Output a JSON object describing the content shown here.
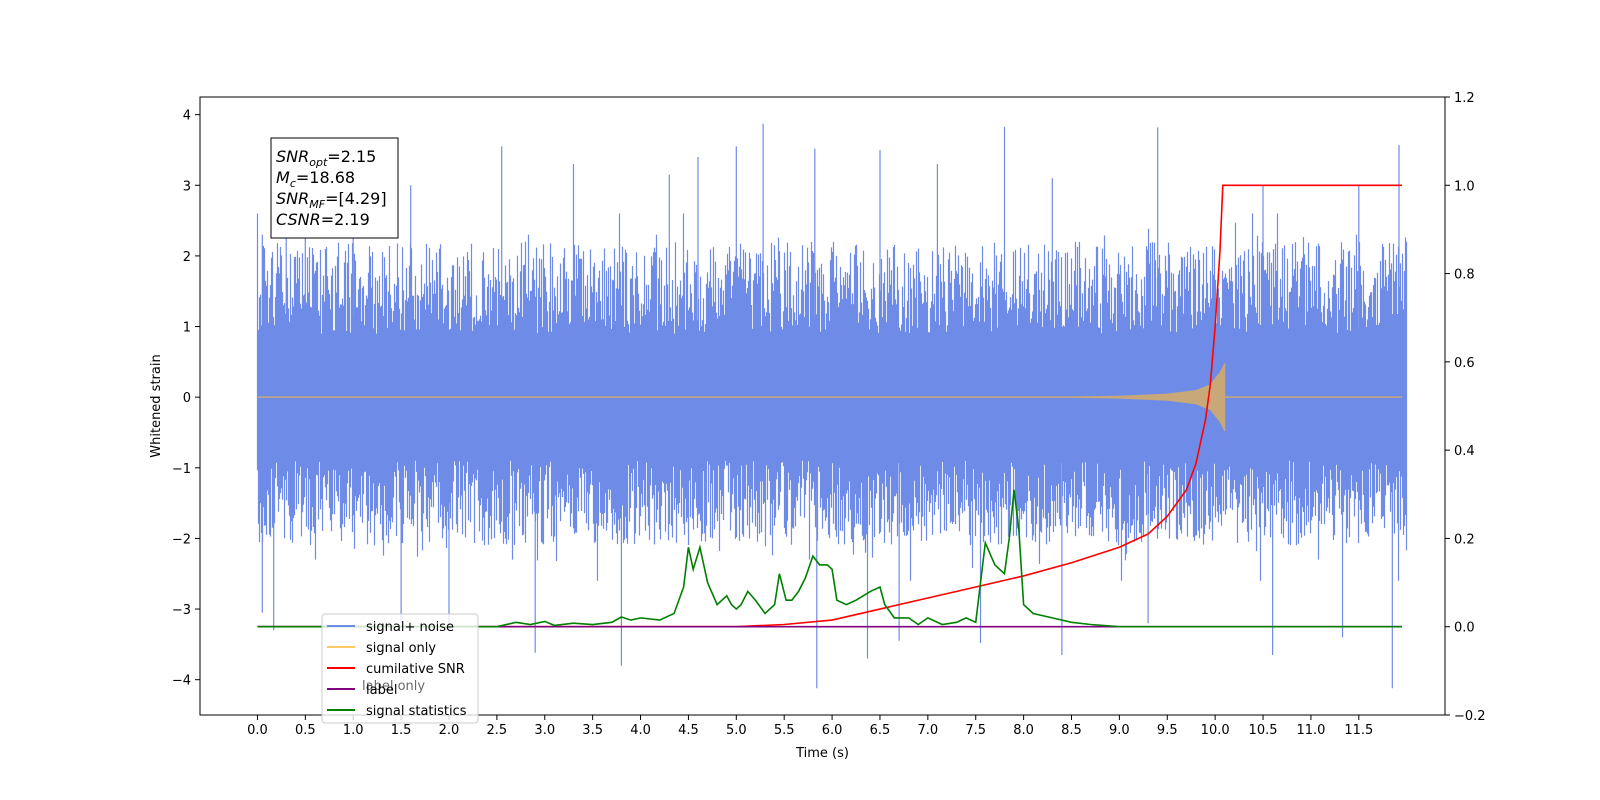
{
  "chart_data": {
    "type": "line",
    "xlabel": "Time (s)",
    "ylabel": "Whitened strain",
    "xlim": [
      -0.6,
      12.4
    ],
    "ylim": [
      -4.5,
      4.25
    ],
    "y2lim": [
      -0.2,
      1.2
    ],
    "x_ticks": [
      "0.0",
      "0.5",
      "1.0",
      "1.5",
      "2.0",
      "2.5",
      "3.0",
      "3.5",
      "4.0",
      "4.5",
      "5.0",
      "5.5",
      "6.0",
      "6.5",
      "7.0",
      "7.5",
      "8.0",
      "8.5",
      "9.0",
      "9.5",
      "10.0",
      "10.5",
      "11.0",
      "11.5"
    ],
    "y_ticks": [
      "4",
      "3",
      "2",
      "1",
      "0",
      "−1",
      "−2",
      "−3",
      "−4"
    ],
    "y2_ticks": [
      "1.2",
      "1.0",
      "0.8",
      "0.6",
      "0.4",
      "0.2",
      "0.0",
      "−0.2"
    ],
    "annotation": {
      "lines": [
        {
          "main": "SNR",
          "sub": "opt",
          "value": "=2.15"
        },
        {
          "main": "M",
          "sub": "c",
          "value": "=18.68"
        },
        {
          "main": "SNR",
          "sub": "MF",
          "value": "=[4.29]"
        },
        {
          "main": "CSNR",
          "sub": "",
          "value": "=2.19"
        }
      ]
    },
    "legend": {
      "placement": "lower-left",
      "entries": [
        {
          "label": "signal+ noise",
          "color": "#6f8be8"
        },
        {
          "label": "signal only",
          "color": "#ffc866"
        },
        {
          "label": "cumilative SNR",
          "color": "#ff0000"
        },
        {
          "label": "label",
          "color": "#800080"
        },
        {
          "label": "signal statistics",
          "color": "#008000"
        }
      ],
      "hidden_text": "label only"
    },
    "series": [
      {
        "name": "signal+ noise",
        "axis": "left",
        "color": "#6f8be8",
        "x_range": [
          0.0,
          12.0
        ],
        "note_spread": "noise band approx -2.1 to 2.3 with spikes to 3.87 and -4.1",
        "peaks": [
          [
            0.05,
            2.3
          ],
          [
            0.3,
            2.5
          ],
          [
            0.5,
            2.9
          ],
          [
            1.0,
            3.1
          ],
          [
            1.6,
            3.0
          ],
          [
            2.55,
            3.55
          ],
          [
            3.3,
            3.3
          ],
          [
            4.3,
            3.15
          ],
          [
            4.6,
            3.4
          ],
          [
            5.0,
            3.55
          ],
          [
            5.28,
            3.87
          ],
          [
            5.82,
            3.52
          ],
          [
            6.5,
            3.5
          ],
          [
            7.1,
            3.3
          ],
          [
            7.8,
            3.83
          ],
          [
            8.3,
            3.1
          ],
          [
            9.4,
            3.82
          ],
          [
            10.5,
            3.0
          ],
          [
            11.5,
            3.0
          ],
          [
            11.92,
            3.57
          ]
        ],
        "troughs": [
          [
            0.05,
            -3.05
          ],
          [
            0.17,
            -3.3
          ],
          [
            1.5,
            -3.2
          ],
          [
            2.0,
            -3.3
          ],
          [
            2.9,
            -3.62
          ],
          [
            3.8,
            -3.8
          ],
          [
            5.84,
            -4.12
          ],
          [
            6.37,
            -3.7
          ],
          [
            6.7,
            -3.45
          ],
          [
            7.55,
            -3.48
          ],
          [
            8.4,
            -3.65
          ],
          [
            9.3,
            -3.2
          ],
          [
            10.6,
            -3.65
          ],
          [
            11.33,
            -3.4
          ],
          [
            11.85,
            -4.12
          ]
        ]
      },
      {
        "name": "signal only",
        "axis": "left",
        "color": "#ffc866",
        "x_range": [
          0.0,
          10.1
        ],
        "envelope": [
          [
            8.5,
            0.01
          ],
          [
            9.0,
            0.02
          ],
          [
            9.5,
            0.05
          ],
          [
            9.8,
            0.1
          ],
          [
            9.95,
            0.18
          ],
          [
            10.05,
            0.35
          ],
          [
            10.1,
            0.48
          ]
        ]
      },
      {
        "name": "cumilative SNR",
        "axis": "right",
        "color": "#ff0000",
        "points": [
          [
            0.0,
            0.0
          ],
          [
            5.0,
            0.0
          ],
          [
            5.5,
            0.005
          ],
          [
            6.0,
            0.015
          ],
          [
            6.5,
            0.04
          ],
          [
            7.0,
            0.065
          ],
          [
            7.5,
            0.09
          ],
          [
            8.0,
            0.115
          ],
          [
            8.5,
            0.145
          ],
          [
            9.0,
            0.18
          ],
          [
            9.3,
            0.21
          ],
          [
            9.5,
            0.25
          ],
          [
            9.7,
            0.31
          ],
          [
            9.8,
            0.37
          ],
          [
            9.9,
            0.47
          ],
          [
            9.95,
            0.55
          ],
          [
            10.0,
            0.68
          ],
          [
            10.05,
            0.85
          ],
          [
            10.08,
            1.0
          ],
          [
            11.95,
            1.0
          ]
        ]
      },
      {
        "name": "label",
        "axis": "right",
        "color": "#800080",
        "points": [
          [
            0.0,
            0.0
          ],
          [
            11.95,
            0.0
          ]
        ]
      },
      {
        "name": "signal statistics",
        "axis": "right",
        "color": "#008000",
        "points": [
          [
            0.0,
            0.0
          ],
          [
            2.5,
            0.0
          ],
          [
            2.7,
            0.01
          ],
          [
            2.85,
            0.005
          ],
          [
            3.0,
            0.012
          ],
          [
            3.1,
            0.003
          ],
          [
            3.3,
            0.008
          ],
          [
            3.5,
            0.005
          ],
          [
            3.7,
            0.01
          ],
          [
            3.8,
            0.022
          ],
          [
            3.9,
            0.015
          ],
          [
            4.0,
            0.02
          ],
          [
            4.2,
            0.015
          ],
          [
            4.35,
            0.03
          ],
          [
            4.45,
            0.09
          ],
          [
            4.5,
            0.18
          ],
          [
            4.55,
            0.13
          ],
          [
            4.62,
            0.18
          ],
          [
            4.7,
            0.1
          ],
          [
            4.8,
            0.05
          ],
          [
            4.9,
            0.07
          ],
          [
            4.95,
            0.05
          ],
          [
            5.0,
            0.04
          ],
          [
            5.05,
            0.05
          ],
          [
            5.12,
            0.08
          ],
          [
            5.2,
            0.06
          ],
          [
            5.3,
            0.03
          ],
          [
            5.4,
            0.05
          ],
          [
            5.45,
            0.12
          ],
          [
            5.52,
            0.06
          ],
          [
            5.58,
            0.06
          ],
          [
            5.65,
            0.08
          ],
          [
            5.72,
            0.11
          ],
          [
            5.8,
            0.16
          ],
          [
            5.87,
            0.14
          ],
          [
            5.95,
            0.14
          ],
          [
            6.0,
            0.13
          ],
          [
            6.05,
            0.06
          ],
          [
            6.15,
            0.05
          ],
          [
            6.25,
            0.06
          ],
          [
            6.4,
            0.08
          ],
          [
            6.5,
            0.09
          ],
          [
            6.55,
            0.05
          ],
          [
            6.65,
            0.02
          ],
          [
            6.8,
            0.02
          ],
          [
            6.9,
            0.005
          ],
          [
            7.0,
            0.02
          ],
          [
            7.15,
            0.005
          ],
          [
            7.3,
            0.01
          ],
          [
            7.4,
            0.02
          ],
          [
            7.5,
            0.01
          ],
          [
            7.6,
            0.19
          ],
          [
            7.7,
            0.14
          ],
          [
            7.8,
            0.12
          ],
          [
            7.85,
            0.2
          ],
          [
            7.9,
            0.31
          ],
          [
            7.95,
            0.22
          ],
          [
            8.0,
            0.05
          ],
          [
            8.1,
            0.03
          ],
          [
            8.3,
            0.02
          ],
          [
            8.5,
            0.01
          ],
          [
            8.7,
            0.005
          ],
          [
            9.0,
            0.0
          ],
          [
            11.95,
            0.0
          ]
        ]
      }
    ]
  }
}
